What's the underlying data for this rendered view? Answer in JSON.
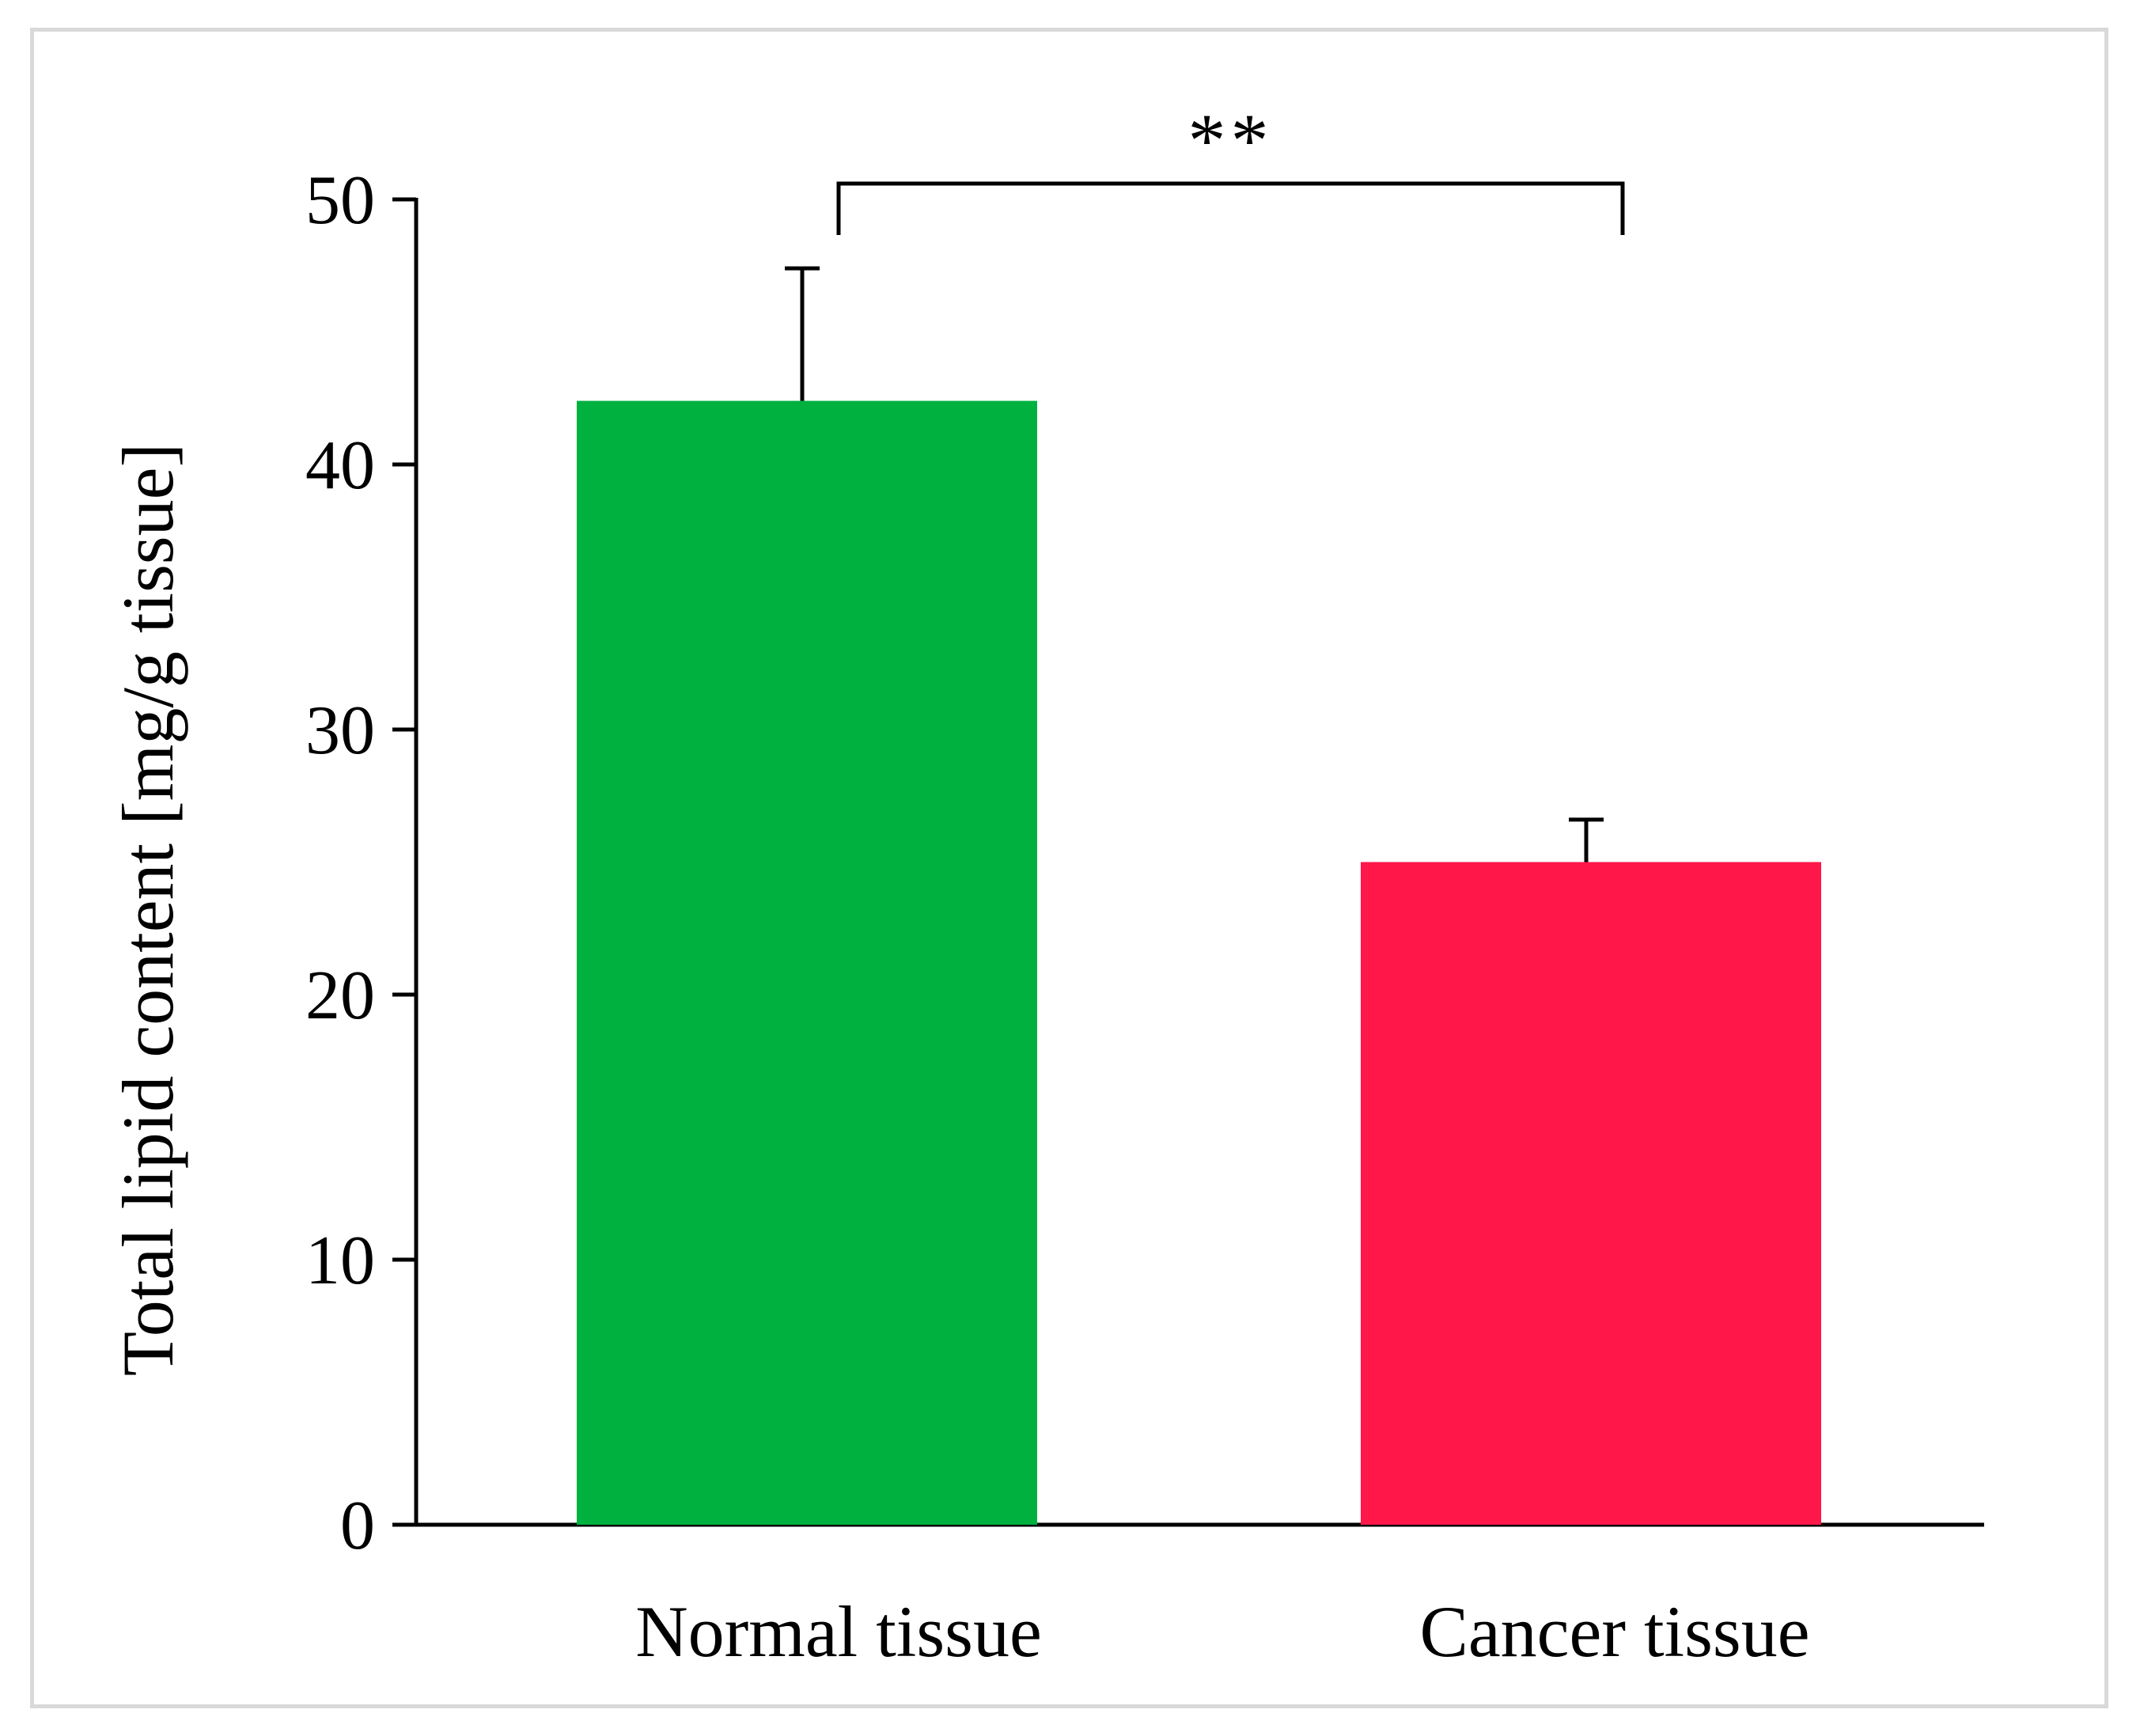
{
  "chart_data": {
    "type": "bar",
    "categories": [
      "Normal tissue",
      "Cancer tissue"
    ],
    "values": [
      42.4,
      25.0
    ],
    "error_upper": [
      5.0,
      1.6
    ],
    "colors": [
      "#00b140",
      "#ff1749"
    ],
    "title": "",
    "xlabel": "",
    "ylabel": "Total lipid content [mg/g tissue]",
    "ylim": [
      0,
      50
    ],
    "yticks": [
      0,
      10,
      20,
      30,
      40,
      50
    ],
    "grid": false,
    "significance": {
      "between": [
        0,
        1
      ],
      "label": "**"
    }
  }
}
